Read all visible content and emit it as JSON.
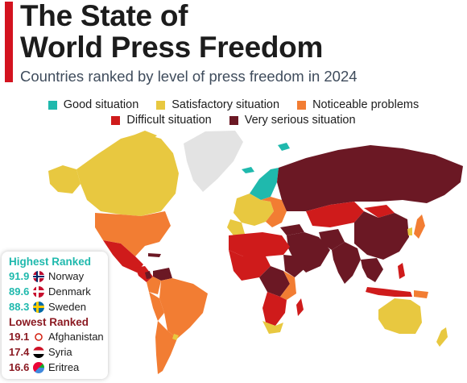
{
  "header": {
    "title_line1": "The State of",
    "title_line2": "World Press Freedom",
    "subtitle": "Countries ranked by level of press freedom in 2024"
  },
  "legend": [
    {
      "label": "Good situation",
      "color": "#1fb9ad"
    },
    {
      "label": "Satisfactory situation",
      "color": "#e8c840"
    },
    {
      "label": "Noticeable problems",
      "color": "#f27d33"
    },
    {
      "label": "Difficult situation",
      "color": "#cf1b1b"
    },
    {
      "label": "Very serious situation",
      "color": "#6b1824"
    }
  ],
  "colors": {
    "no_data": "#e3e3e3",
    "accent": "#d3131f",
    "highest_text": "#1fb9ad",
    "lowest_text": "#8b1a22"
  },
  "highest": {
    "heading": "Highest Ranked",
    "rows": [
      {
        "score": "91.9",
        "country": "Norway",
        "icon": "norway-flag-icon"
      },
      {
        "score": "89.6",
        "country": "Denmark",
        "icon": "denmark-flag-icon"
      },
      {
        "score": "88.3",
        "country": "Sweden",
        "icon": "sweden-flag-icon"
      }
    ]
  },
  "lowest": {
    "heading": "Lowest Ranked",
    "rows": [
      {
        "score": "19.1",
        "country": "Afghanistan",
        "icon": "afghanistan-flag-icon"
      },
      {
        "score": "17.4",
        "country": "Syria",
        "icon": "syria-flag-icon"
      },
      {
        "score": "16.6",
        "country": "Eritrea",
        "icon": "eritrea-flag-icon"
      }
    ]
  }
}
